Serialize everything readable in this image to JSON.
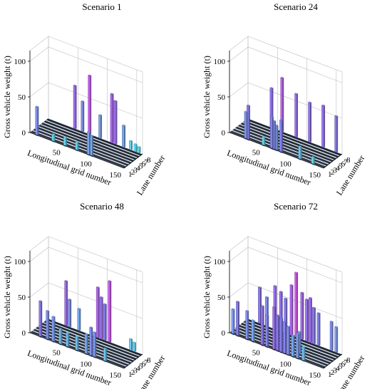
{
  "figure": {
    "zlabel": "Gross vehicle weight (t)",
    "xlabel": "Longitudinal grid number",
    "ylabel": "Lane number"
  },
  "chart_data": [
    {
      "type": "bar3d",
      "title": "Scenario 1",
      "xlabel": "Longitudinal grid number",
      "ylabel": "Lane number",
      "zlabel": "Gross vehicle weight (t)",
      "xlim": [
        0,
        160
      ],
      "ylim": [
        1,
        8
      ],
      "zlim": [
        0,
        100
      ],
      "xticks": [
        50,
        100,
        150
      ],
      "zticks": [
        0,
        50,
        100
      ],
      "yticks": [
        1,
        2,
        3,
        4,
        5,
        6,
        7,
        8
      ],
      "bars": [
        {
          "x": 12,
          "lane": 1,
          "gvw": 40
        },
        {
          "x": 40,
          "lane": 1,
          "gvw": 10
        },
        {
          "x": 60,
          "lane": 1,
          "gvw": 12
        },
        {
          "x": 80,
          "lane": 1,
          "gvw": 12
        },
        {
          "x": 100,
          "lane": 1,
          "gvw": 32
        },
        {
          "x": 105,
          "lane": 1,
          "gvw": 28
        },
        {
          "x": 45,
          "lane": 8,
          "gvw": 60
        },
        {
          "x": 58,
          "lane": 8,
          "gvw": 42
        },
        {
          "x": 70,
          "lane": 8,
          "gvw": 82
        },
        {
          "x": 88,
          "lane": 8,
          "gvw": 32
        },
        {
          "x": 108,
          "lane": 8,
          "gvw": 68
        },
        {
          "x": 114,
          "lane": 8,
          "gvw": 60
        },
        {
          "x": 128,
          "lane": 8,
          "gvw": 30
        },
        {
          "x": 140,
          "lane": 8,
          "gvw": 12
        },
        {
          "x": 148,
          "lane": 8,
          "gvw": 10
        },
        {
          "x": 154,
          "lane": 8,
          "gvw": 8
        }
      ]
    },
    {
      "type": "bar3d",
      "title": "Scenario 24",
      "xlabel": "Longitudinal grid number",
      "ylabel": "Lane number",
      "zlabel": "Gross vehicle weight (t)",
      "xlim": [
        0,
        160
      ],
      "ylim": [
        1,
        8
      ],
      "zlim": [
        0,
        100
      ],
      "xticks": [
        50,
        100,
        150
      ],
      "zticks": [
        0,
        50,
        100
      ],
      "yticks": [
        1,
        2,
        3,
        4,
        5,
        6,
        7,
        8
      ],
      "bars": [
        {
          "x": 28,
          "lane": 1,
          "gvw": 38
        },
        {
          "x": 32,
          "lane": 1,
          "gvw": 48
        },
        {
          "x": 58,
          "lane": 1,
          "gvw": 12
        },
        {
          "x": 72,
          "lane": 1,
          "gvw": 45
        },
        {
          "x": 76,
          "lane": 1,
          "gvw": 40
        },
        {
          "x": 80,
          "lane": 1,
          "gvw": 35
        },
        {
          "x": 88,
          "lane": 1,
          "gvw": 45
        },
        {
          "x": 120,
          "lane": 1,
          "gvw": 18
        },
        {
          "x": 142,
          "lane": 1,
          "gvw": 10
        },
        {
          "x": 40,
          "lane": 8,
          "gvw": 55
        },
        {
          "x": 58,
          "lane": 8,
          "gvw": 75
        },
        {
          "x": 82,
          "lane": 8,
          "gvw": 60
        },
        {
          "x": 105,
          "lane": 8,
          "gvw": 55
        },
        {
          "x": 128,
          "lane": 8,
          "gvw": 58
        },
        {
          "x": 150,
          "lane": 8,
          "gvw": 50
        }
      ]
    },
    {
      "type": "bar3d",
      "title": "Scenario 48",
      "xlabel": "Longitudinal grid number",
      "ylabel": "Lane number",
      "zlabel": "Gross vehicle weight (t)",
      "xlim": [
        0,
        160
      ],
      "ylim": [
        1,
        8
      ],
      "zlim": [
        0,
        100
      ],
      "xticks": [
        50,
        100,
        150
      ],
      "zticks": [
        0,
        50,
        100
      ],
      "yticks": [
        1,
        2,
        3,
        4,
        5,
        6,
        7,
        8
      ],
      "bars": [
        {
          "x": 18,
          "lane": 1,
          "gvw": 50
        },
        {
          "x": 30,
          "lane": 1,
          "gvw": 40
        },
        {
          "x": 40,
          "lane": 1,
          "gvw": 35
        },
        {
          "x": 52,
          "lane": 1,
          "gvw": 22
        },
        {
          "x": 64,
          "lane": 1,
          "gvw": 20
        },
        {
          "x": 80,
          "lane": 1,
          "gvw": 20
        },
        {
          "x": 96,
          "lane": 1,
          "gvw": 28
        },
        {
          "x": 104,
          "lane": 1,
          "gvw": 40
        },
        {
          "x": 110,
          "lane": 1,
          "gvw": 35
        },
        {
          "x": 128,
          "lane": 1,
          "gvw": 18
        },
        {
          "x": 30,
          "lane": 8,
          "gvw": 62
        },
        {
          "x": 36,
          "lane": 8,
          "gvw": 38
        },
        {
          "x": 52,
          "lane": 8,
          "gvw": 30
        },
        {
          "x": 84,
          "lane": 8,
          "gvw": 70
        },
        {
          "x": 90,
          "lane": 8,
          "gvw": 58
        },
        {
          "x": 96,
          "lane": 8,
          "gvw": 50
        },
        {
          "x": 104,
          "lane": 8,
          "gvw": 85
        },
        {
          "x": 140,
          "lane": 8,
          "gvw": 15
        },
        {
          "x": 146,
          "lane": 8,
          "gvw": 12
        }
      ]
    },
    {
      "type": "bar3d",
      "title": "Scenario 72",
      "xlabel": "Longitudinal grid number",
      "ylabel": "Lane number",
      "zlabel": "Gross vehicle weight (t)",
      "xlim": [
        0,
        160
      ],
      "ylim": [
        1,
        8
      ],
      "zlim": [
        0,
        100
      ],
      "xticks": [
        50,
        100,
        150
      ],
      "zticks": [
        0,
        50,
        100
      ],
      "yticks": [
        1,
        2,
        3,
        4,
        5,
        6,
        7,
        8
      ],
      "bars": [
        {
          "x": 6,
          "lane": 1,
          "gvw": 35
        },
        {
          "x": 14,
          "lane": 1,
          "gvw": 48
        },
        {
          "x": 30,
          "lane": 1,
          "gvw": 40
        },
        {
          "x": 40,
          "lane": 1,
          "gvw": 30
        },
        {
          "x": 56,
          "lane": 1,
          "gvw": 55
        },
        {
          "x": 64,
          "lane": 1,
          "gvw": 45
        },
        {
          "x": 76,
          "lane": 1,
          "gvw": 60
        },
        {
          "x": 82,
          "lane": 1,
          "gvw": 50
        },
        {
          "x": 88,
          "lane": 1,
          "gvw": 48
        },
        {
          "x": 94,
          "lane": 1,
          "gvw": 45
        },
        {
          "x": 100,
          "lane": 1,
          "gvw": 40
        },
        {
          "x": 108,
          "lane": 1,
          "gvw": 30
        },
        {
          "x": 116,
          "lane": 1,
          "gvw": 35
        },
        {
          "x": 126,
          "lane": 1,
          "gvw": 20
        },
        {
          "x": 70,
          "lane": 3,
          "gvw": 40
        },
        {
          "x": 110,
          "lane": 3,
          "gvw": 30
        },
        {
          "x": 20,
          "lane": 8,
          "gvw": 50
        },
        {
          "x": 32,
          "lane": 8,
          "gvw": 40
        },
        {
          "x": 46,
          "lane": 8,
          "gvw": 60
        },
        {
          "x": 56,
          "lane": 8,
          "gvw": 55
        },
        {
          "x": 64,
          "lane": 8,
          "gvw": 48
        },
        {
          "x": 74,
          "lane": 8,
          "gvw": 70
        },
        {
          "x": 82,
          "lane": 8,
          "gvw": 90
        },
        {
          "x": 92,
          "lane": 8,
          "gvw": 65
        },
        {
          "x": 100,
          "lane": 8,
          "gvw": 58
        },
        {
          "x": 106,
          "lane": 8,
          "gvw": 62
        },
        {
          "x": 112,
          "lane": 8,
          "gvw": 50
        },
        {
          "x": 120,
          "lane": 8,
          "gvw": 45
        },
        {
          "x": 142,
          "lane": 8,
          "gvw": 40
        },
        {
          "x": 150,
          "lane": 8,
          "gvw": 35
        }
      ]
    }
  ],
  "colors": {
    "floor_dark": "#1f2a38",
    "floor_light": "#3a4458",
    "lane_line": "#ffffff",
    "bar_low": "#5ff0f0",
    "bar_mid": "#8a7af0",
    "bar_high": "#e84cf0"
  }
}
